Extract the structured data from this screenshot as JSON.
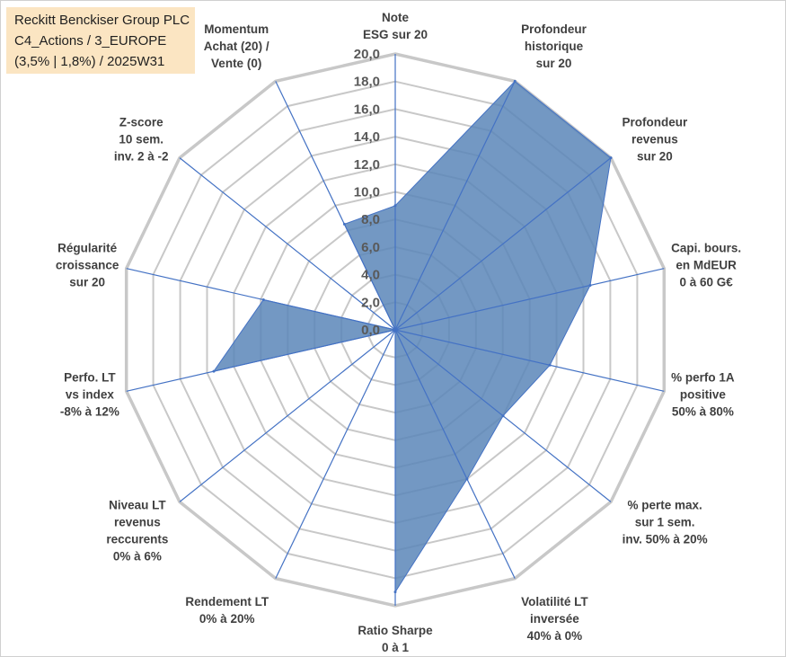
{
  "title_box": {
    "line1": "Reckitt Benckiser Group PLC",
    "line2": "C4_Actions / 3_EUROPE",
    "line3": "(3,5% | 1,8%) / 2025W31"
  },
  "colors": {
    "fill": "#5b86b8",
    "stroke": "#4472c4",
    "grid": "#c8c8c8",
    "spoke": "#4472c4",
    "title_bg": "#fbe5c2",
    "text": "#404040"
  },
  "chart_data": {
    "type": "radar",
    "title": "Reckitt Benckiser Group PLC",
    "rmin": 0,
    "rmax": 20,
    "tick_step": 2,
    "tick_labels": [
      "0,0",
      "2,0",
      "4,0",
      "6,0",
      "8,0",
      "10,0",
      "12,0",
      "14,0",
      "16,0",
      "18,0",
      "20,0"
    ],
    "grid": true,
    "axes": [
      [
        "Note",
        "ESG sur 20"
      ],
      [
        "Profondeur",
        "historique",
        "sur 20"
      ],
      [
        "Profondeur",
        "revenus",
        "sur 20"
      ],
      [
        "Capi. bours.",
        "en MdEUR",
        "0 à 60 G€"
      ],
      [
        "% perfo 1A",
        "positive",
        "50% à 80%"
      ],
      [
        "% perte max.",
        "sur 1 sem.",
        "inv. 50% à 20%"
      ],
      [
        "Volatilité LT",
        "inversée",
        "40% à 0%"
      ],
      [
        "Ratio Sharpe",
        "0 à 1"
      ],
      [
        "Rendement LT",
        "0% à 20%"
      ],
      [
        "Niveau LT",
        "revenus",
        "reccurents",
        "0% à 6%"
      ],
      [
        "Perfo. LT",
        "vs index",
        "-8% à 12%"
      ],
      [
        "Régularité",
        "croissance",
        "sur 20"
      ],
      [
        "Z-score",
        "10 sem.",
        "inv. 2 à -2"
      ],
      [
        "Momentum",
        "Achat (20) /",
        "Vente (0)"
      ]
    ],
    "series": [
      {
        "values": [
          9.0,
          20.0,
          20.0,
          14.5,
          11.5,
          10.0,
          12.0,
          19.0,
          0.0,
          0.0,
          13.5,
          9.8,
          0.0,
          8.5
        ]
      }
    ]
  }
}
